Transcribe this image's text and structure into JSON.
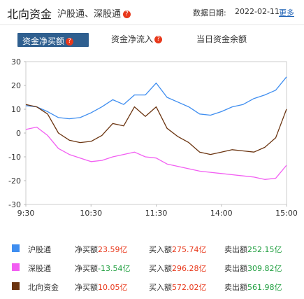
{
  "header": {
    "title": "北向资金",
    "subtitle": "沪股通、深股通",
    "date_label": "数据日期:",
    "date_value": "2022-02-11",
    "more": "更多"
  },
  "tabs": [
    {
      "label": "资金净买额",
      "active": true
    },
    {
      "label": "资金净流入",
      "active": false
    },
    {
      "label": "当日资金余额",
      "active": false
    }
  ],
  "colors": {
    "hgt": "#3f8ef0",
    "sgt": "#f25ef2",
    "north": "#6b3410",
    "up": "#e8381b",
    "down": "#1e9e3e"
  },
  "chart_data": {
    "type": "line",
    "x": [
      "9:30",
      "9:40",
      "9:50",
      "10:00",
      "10:10",
      "10:20",
      "10:30",
      "10:40",
      "10:50",
      "11:00",
      "11:10",
      "11:20",
      "11:30",
      "13:10",
      "13:20",
      "13:30",
      "13:40",
      "13:50",
      "14:00",
      "14:10",
      "14:20",
      "14:30",
      "14:40",
      "14:50",
      "15:00"
    ],
    "x_ticks": [
      "9:30",
      "10:30",
      "11:30",
      "14:00",
      "15:00"
    ],
    "ylim": [
      -30,
      30
    ],
    "y_ticks": [
      30,
      20,
      10,
      0,
      -10,
      -20,
      -30
    ],
    "series": [
      {
        "name": "沪股通",
        "values": [
          11.5,
          11.0,
          9.0,
          6.5,
          6.0,
          6.5,
          8.5,
          11.0,
          14.0,
          12.0,
          16.0,
          16.0,
          21.0,
          15.0,
          13.0,
          11.0,
          8.0,
          7.5,
          9.0,
          11.0,
          12.0,
          14.5,
          16.0,
          18.0,
          23.59
        ]
      },
      {
        "name": "深股通",
        "values": [
          1.5,
          2.5,
          -1.0,
          -6.5,
          -9.0,
          -10.5,
          -12.0,
          -11.5,
          -10.0,
          -9.0,
          -8.0,
          -10.0,
          -10.5,
          -13.0,
          -14.0,
          -15.0,
          -16.0,
          -16.5,
          -17.0,
          -17.5,
          -18.0,
          -18.5,
          -19.5,
          -19.0,
          -13.54
        ]
      },
      {
        "name": "北向资金",
        "values": [
          12.0,
          11.0,
          8.0,
          0.0,
          -3.0,
          -4.0,
          -3.5,
          -1.0,
          4.0,
          3.0,
          11.0,
          7.0,
          11.0,
          2.0,
          -1.5,
          -4.0,
          -8.0,
          -9.0,
          -8.0,
          -7.0,
          -7.5,
          -8.0,
          -6.0,
          -2.0,
          10.05
        ]
      }
    ]
  },
  "legend": [
    {
      "name": "沪股通",
      "net_label": "净买额",
      "net": "23.59亿",
      "buy_label": "买入额",
      "buy": "275.74亿",
      "sell_label": "卖出额",
      "sell": "252.15亿",
      "net_dir": "up"
    },
    {
      "name": "深股通",
      "net_label": "净买额",
      "net": "-13.54亿",
      "buy_label": "买入额",
      "buy": "296.28亿",
      "sell_label": "卖出额",
      "sell": "309.82亿",
      "net_dir": "down"
    },
    {
      "name": "北向资金",
      "net_label": "净买额",
      "net": "10.05亿",
      "buy_label": "买入额",
      "buy": "572.02亿",
      "sell_label": "卖出额",
      "sell": "561.98亿",
      "net_dir": "up"
    }
  ]
}
